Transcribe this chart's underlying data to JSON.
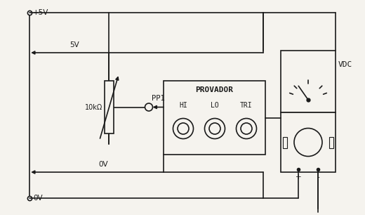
{
  "bg_color": "#f5f3ee",
  "line_color": "#1a1a1a",
  "fig_width": 5.2,
  "fig_height": 3.06,
  "dpi": 100,
  "labels": {
    "plus5v": "+5V",
    "gnd_bottom": "0V",
    "r_val": "10kΩ",
    "pp1": "PP1",
    "provador": "PROVADOR",
    "hi": "HI",
    "lo": "LO",
    "tri": "TRI",
    "vdc": "VDC",
    "five_v": "5V",
    "zero_v": "0V",
    "plus": "+",
    "minus": "-"
  },
  "font_size": 7.5,
  "lw": 1.2
}
